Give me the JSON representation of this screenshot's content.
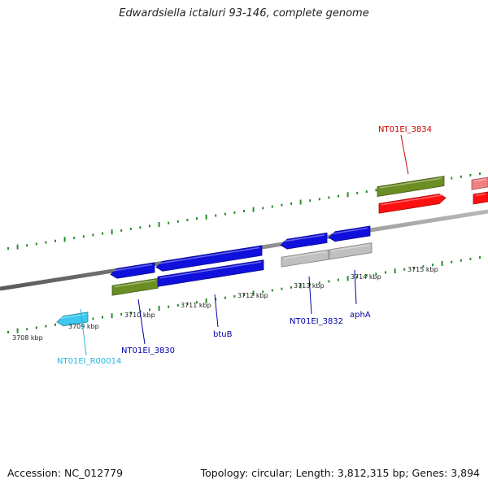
{
  "title": "Edwardsiella ictaluri 93-146, complete genome",
  "footer": {
    "accession": "Accession: NC_012779",
    "summary": "Topology: circular; Length: 3,812,315 bp; Genes: 3,894"
  },
  "colors": {
    "backbone": "#8a8a8a",
    "tick": "#2a8a2a",
    "blue_gene": "#1010dd",
    "cds_olive": "#6b8e23",
    "grey_feature": "#c0c0c0",
    "red_gene": "#ff1010",
    "pink_gene": "#f08080",
    "rna_cyan": "#3cc8f0",
    "label_blue": "#0000aa",
    "label_red": "#cc0000",
    "label_cyan": "#20b8e0"
  },
  "scale_labels": [
    "3708 kbp",
    "3709 kbp",
    "3710 kbp",
    "3711 kbp",
    "3712 kbp",
    "3713 kbp",
    "3714 kbp",
    "3715 kbp"
  ],
  "genes": [
    {
      "name": "NT01EI_R00014",
      "color_key": "label_cyan"
    },
    {
      "name": "NT01EI_3830",
      "color_key": "label_blue"
    },
    {
      "name": "btuB",
      "color_key": "label_blue"
    },
    {
      "name": "NT01EI_3832",
      "color_key": "label_blue"
    },
    {
      "name": "aphA",
      "color_key": "label_blue"
    },
    {
      "name": "NT01EI_3834",
      "color_key": "label_red"
    }
  ]
}
